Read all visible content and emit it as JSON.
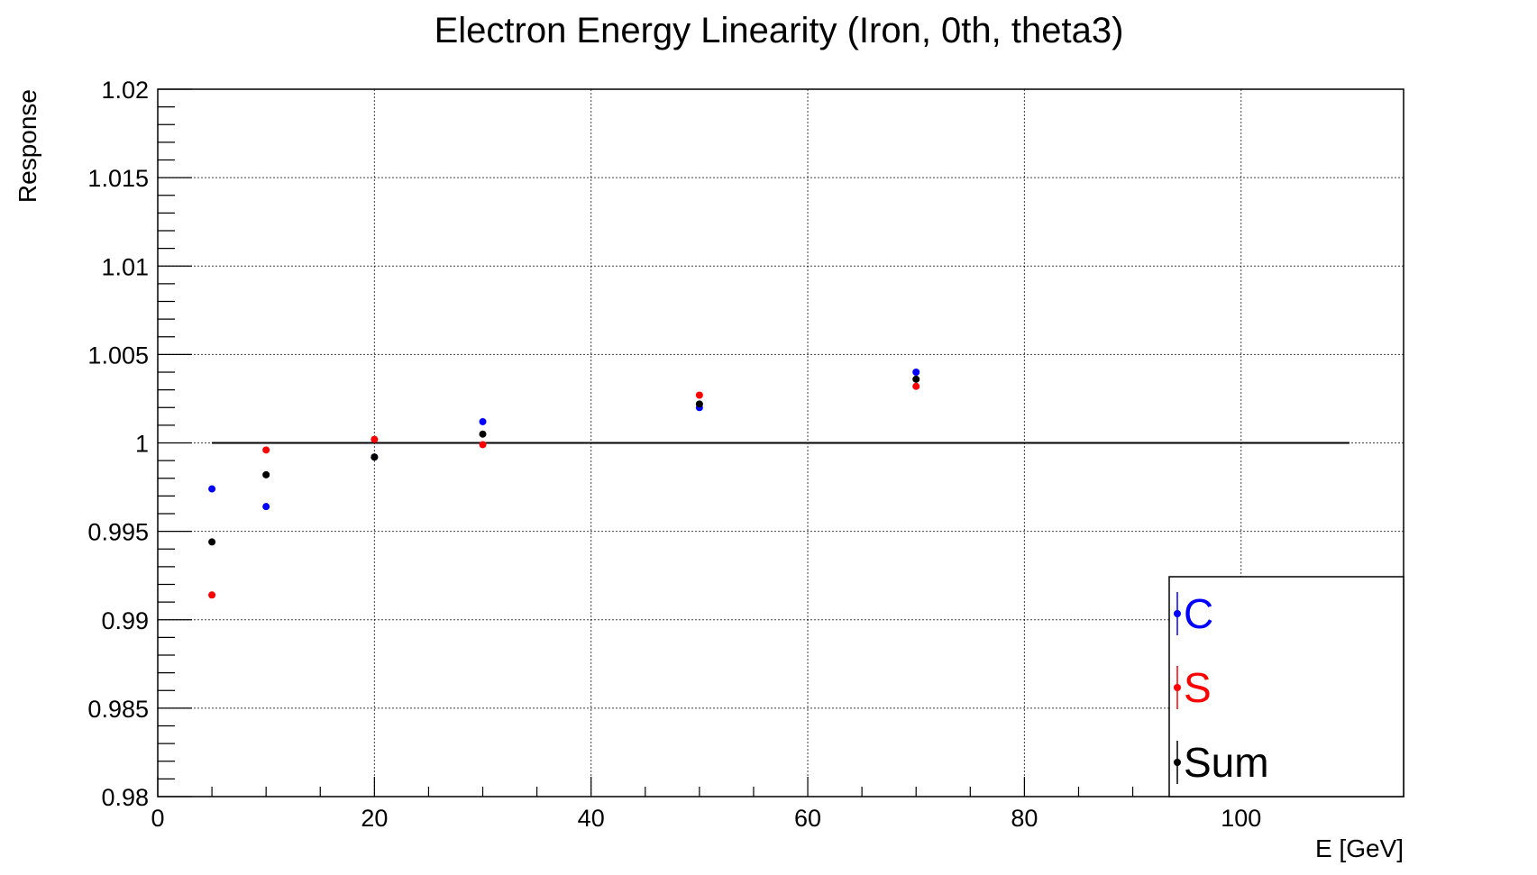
{
  "chart_data": {
    "type": "scatter",
    "title": "Electron Energy Linearity (Iron, 0th, theta3)",
    "xlabel": "E [GeV]",
    "ylabel": "Response",
    "xlim": [
      0,
      115
    ],
    "ylim": [
      0.98,
      1.02
    ],
    "xticks": [
      0,
      20,
      40,
      60,
      80,
      100
    ],
    "xtick_labels": [
      "0",
      "20",
      "40",
      "60",
      "80",
      "100"
    ],
    "yticks": [
      0.98,
      0.985,
      0.99,
      0.995,
      1.0,
      1.005,
      1.01,
      1.015,
      1.02
    ],
    "ytick_labels": [
      "0.98",
      "0.985",
      "0.99",
      "0.995",
      "1",
      "1.005",
      "1.01",
      "1.015",
      "1.02"
    ],
    "grid": true,
    "legend_position": "bottom-right",
    "reference_line": {
      "y": 1.0,
      "x_start": 5,
      "x_end": 110,
      "color": "#000000"
    },
    "series": [
      {
        "name": "C",
        "color": "#0000ff",
        "x": [
          5,
          10,
          20,
          30,
          50,
          70
        ],
        "y": [
          0.9974,
          0.9964,
          0.9992,
          1.0012,
          1.002,
          1.004
        ]
      },
      {
        "name": "S",
        "color": "#ff0000",
        "x": [
          5,
          10,
          20,
          30,
          50,
          70
        ],
        "y": [
          0.9914,
          0.9996,
          1.0002,
          0.9999,
          1.0027,
          1.0032
        ]
      },
      {
        "name": "Sum",
        "color": "#000000",
        "x": [
          5,
          10,
          20,
          30,
          50,
          70
        ],
        "y": [
          0.9944,
          0.9982,
          0.9992,
          1.0005,
          1.0022,
          1.0036
        ]
      }
    ]
  }
}
